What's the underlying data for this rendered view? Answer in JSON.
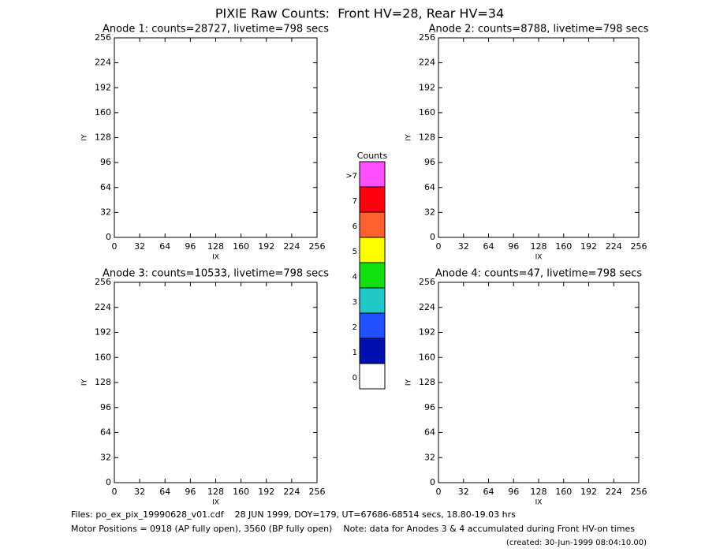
{
  "title": "PIXIE Raw Counts:  Front HV=28, Rear HV=34",
  "chart_data": [
    {
      "type": "heatmap",
      "title": "Anode 1: counts=28727, livetime=798 secs",
      "xlabel": "IX",
      "ylabel": "IY",
      "xlim": [
        0,
        256
      ],
      "ylim": [
        0,
        256
      ],
      "xticks": [
        0,
        32,
        64,
        96,
        128,
        160,
        192,
        224,
        256
      ],
      "yticks": [
        0,
        32,
        64,
        96,
        128,
        160,
        192,
        224,
        256
      ]
    },
    {
      "type": "heatmap",
      "title": "Anode 2: counts=8788, livetime=798 secs",
      "xlabel": "IX",
      "ylabel": "IY",
      "xlim": [
        0,
        256
      ],
      "ylim": [
        0,
        256
      ],
      "xticks": [
        0,
        32,
        64,
        96,
        128,
        160,
        192,
        224,
        256
      ],
      "yticks": [
        0,
        32,
        64,
        96,
        128,
        160,
        192,
        224,
        256
      ]
    },
    {
      "type": "heatmap",
      "title": "Anode 3: counts=10533, livetime=798 secs",
      "xlabel": "IX",
      "ylabel": "IY",
      "xlim": [
        0,
        256
      ],
      "ylim": [
        0,
        256
      ],
      "xticks": [
        0,
        32,
        64,
        96,
        128,
        160,
        192,
        224,
        256
      ],
      "yticks": [
        0,
        32,
        64,
        96,
        128,
        160,
        192,
        224,
        256
      ]
    },
    {
      "type": "heatmap",
      "title": "Anode 4: counts=47, livetime=798 secs",
      "xlabel": "IX",
      "ylabel": "IY",
      "xlim": [
        0,
        256
      ],
      "ylim": [
        0,
        256
      ],
      "xticks": [
        0,
        32,
        64,
        96,
        128,
        160,
        192,
        224,
        256
      ],
      "yticks": [
        0,
        32,
        64,
        96,
        128,
        160,
        192,
        224,
        256
      ]
    }
  ],
  "colorbar": {
    "title": "Counts",
    "levels": [
      0,
      1,
      2,
      3,
      4,
      5,
      6,
      7,
      {
        "value": 8,
        "label": ">7"
      }
    ],
    "colors": [
      "#ffffff",
      "#0010b0",
      "#2050ff",
      "#20c8c8",
      "#10e010",
      "#ffff00",
      "#ff6030",
      "#ff0010",
      "#ff50ff"
    ]
  },
  "footer": {
    "files": "Files: po_ex_pix_19990628_v01.cdf    28 JUN 1999, DOY=179, UT=67686-68514 secs, 18.80-19.03 hrs",
    "motor": "Motor Positions = 0918 (AP fully open), 3560 (BP fully open)    Note: data for Anodes 3 & 4 accumulated during Front HV-on times",
    "created": "(created: 30-Jun-1999 08:04:10.00)"
  }
}
